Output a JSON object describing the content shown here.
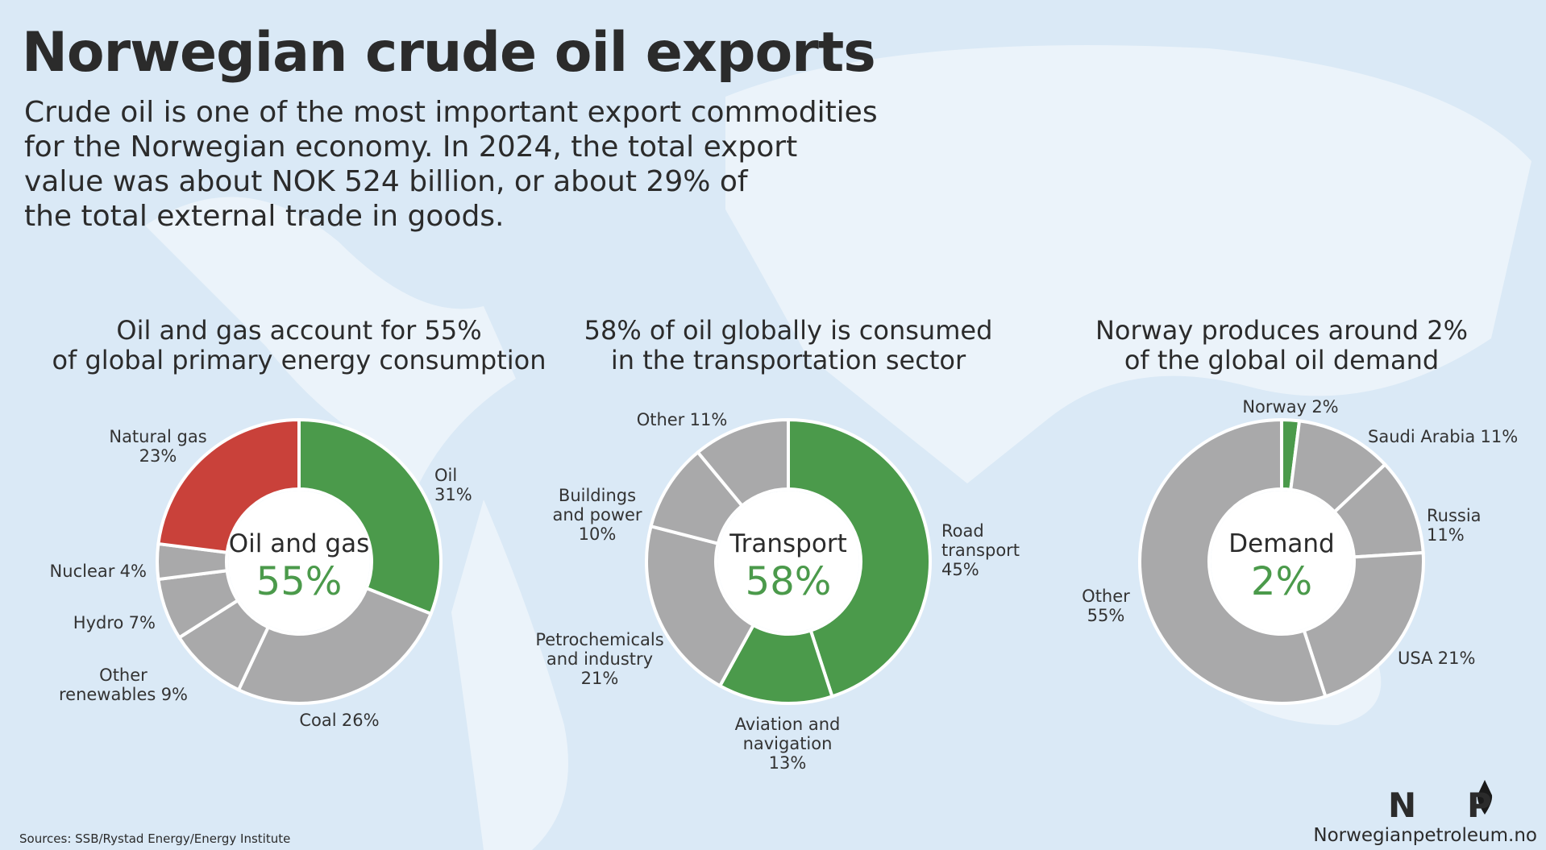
{
  "title": "Norwegian crude oil exports",
  "subtitle": "Crude oil is one of the most important export commodities\nfor the Norwegian economy. In 2024, the total export\nvalue was about NOK 524 billion, or about 29% of\nthe total external trade in goods.",
  "chart_data": [
    {
      "type": "donut",
      "title": "Oil and gas account for 55%\nof global primary energy consumption",
      "center_label": "Oil and gas",
      "center_value": "55%",
      "categories": [
        "Oil",
        "Coal",
        "Other\nrenewables",
        "Hydro",
        "Nuclear",
        "Natural gas"
      ],
      "values": [
        31,
        26,
        9,
        7,
        4,
        23
      ],
      "value_labels": [
        "31%",
        "26%",
        "9%",
        "7%",
        "4%",
        "23%"
      ],
      "colors": [
        "#4b9a4b",
        "#a9a9aa",
        "#a9a9aa",
        "#a9a9aa",
        "#a9a9aa",
        "#c9413a"
      ]
    },
    {
      "type": "donut",
      "title": "58% of oil globally is consumed\nin the transportation sector",
      "center_label": "Transport",
      "center_value": "58%",
      "categories": [
        "Road\ntransport",
        "Aviation and\nnavigation",
        "Petrochemicals\nand industry",
        "Buildings\nand power",
        "Other"
      ],
      "values": [
        45,
        13,
        21,
        10,
        11
      ],
      "value_labels": [
        "45%",
        "13%",
        "21%",
        "10%",
        "11%"
      ],
      "colors": [
        "#4b9a4b",
        "#4b9a4b",
        "#a9a9aa",
        "#a9a9aa",
        "#a9a9aa"
      ]
    },
    {
      "type": "donut",
      "title": "Norway produces around 2%\nof the global oil demand",
      "center_label": "Demand",
      "center_value": "2%",
      "categories": [
        "Norway",
        "Saudi Arabia",
        "Russia",
        "USA",
        "Other"
      ],
      "values": [
        2,
        11,
        11,
        21,
        55
      ],
      "value_labels": [
        "2%",
        "11%",
        "11%",
        "21%",
        "55%"
      ],
      "colors": [
        "#4b9a4b",
        "#a9a9aa",
        "#a9a9aa",
        "#a9a9aa",
        "#a9a9aa"
      ]
    }
  ],
  "sources": "Sources: SSB/Rystad Energy/Energy Institute",
  "logo": {
    "left": "N",
    "right": "P"
  },
  "website": "Norwegianpetroleum.no"
}
